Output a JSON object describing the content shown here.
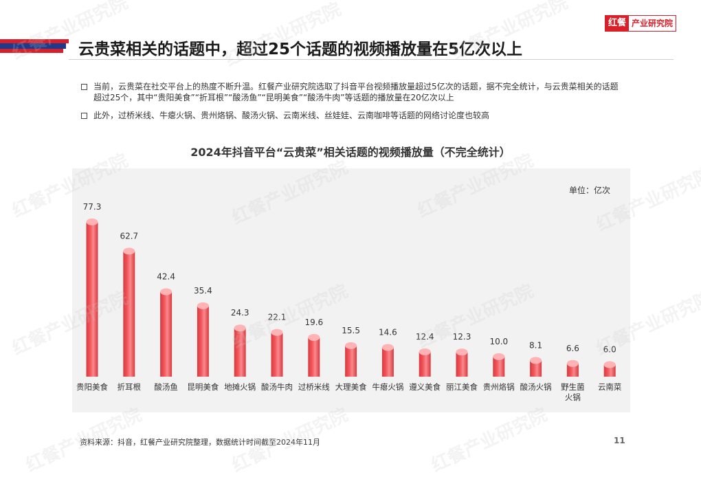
{
  "header": {
    "title": "云贵菜相关的话题中，超过25个话题的视频播放量在5亿次以上",
    "logo_red": "红餐",
    "logo_text": "产业研究院"
  },
  "bullets": [
    "当前，云贵菜在社交平台上的热度不断升温。红餐产业研究院选取了抖音平台视频播放量超过5亿次的话题，据不完全统计，与云贵菜相关的话题超过25个，其中“贵阳美食”“折耳根”“酸汤鱼”“昆明美食”“酸汤牛肉”等话题的播放量在20亿次以上",
    "此外，过桥米线、牛瘪火锅、贵州烙锅、酸汤火锅、云南米线、丝娃娃、云南咖啡等话题的网络讨论度也较高"
  ],
  "chart_data": {
    "type": "bar",
    "title": "2024年抖音平台“云贵菜”相关话题的视频播放量（不完全统计）",
    "unit": "单位：亿次",
    "categories": [
      "贵阳美食",
      "折耳根",
      "酸汤鱼",
      "昆明美食",
      "地摊火锅",
      "酸汤牛肉",
      "过桥米线",
      "大理美食",
      "牛瘪火锅",
      "遵义美食",
      "丽江美食",
      "贵州烙锅",
      "酸汤火锅",
      "野生菌火锅",
      "云南菜"
    ],
    "values": [
      77.3,
      62.7,
      42.4,
      35.4,
      24.3,
      22.1,
      19.6,
      15.5,
      14.6,
      12.4,
      12.3,
      10.0,
      8.1,
      6.6,
      6.0
    ],
    "value_labels": [
      "77.3",
      "62.7",
      "42.4",
      "35.4",
      "24.3",
      "22.1",
      "19.6",
      "15.5",
      "14.6",
      "12.4",
      "12.3",
      "10.0",
      "8.1",
      "6.6",
      "6.0"
    ],
    "ylim": [
      0,
      80
    ],
    "grid": false,
    "colors": {
      "bar_top": "#ffb3b5",
      "bar_body": "#f2575c",
      "bar_shade": "#d9383e"
    }
  },
  "footer": {
    "source": "资料来源：抖音，红餐产业研究院整理，数据统计时间截至2024年11月",
    "page": "11"
  }
}
